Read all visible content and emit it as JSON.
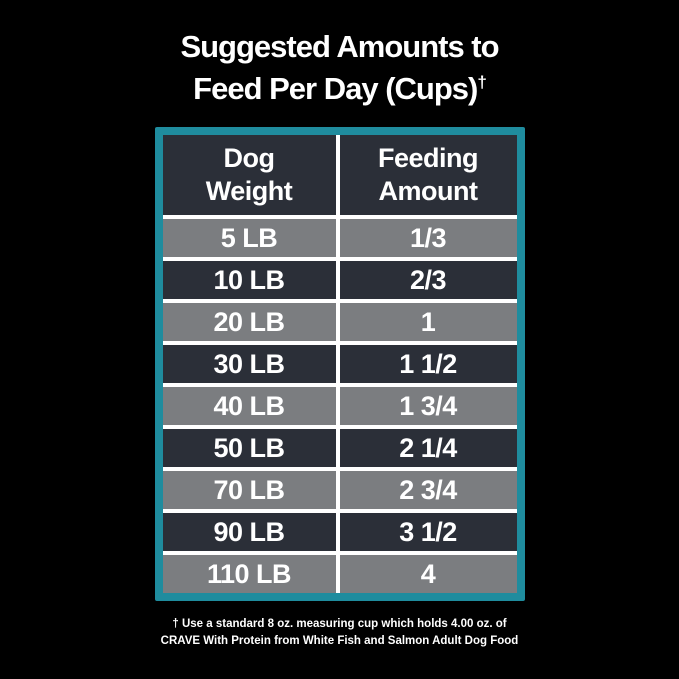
{
  "title": {
    "line1": "Suggested Amounts to",
    "line2": "Feed Per Day (Cups)",
    "dagger": "†"
  },
  "table": {
    "columns": [
      {
        "line1": "Dog",
        "line2": "Weight"
      },
      {
        "line1": "Feeding",
        "line2": "Amount"
      }
    ],
    "rows": [
      {
        "weight": "5 LB",
        "amount": "1/3"
      },
      {
        "weight": "10 LB",
        "amount": "2/3"
      },
      {
        "weight": "20 LB",
        "amount": "1"
      },
      {
        "weight": "30 LB",
        "amount": "1 1/2"
      },
      {
        "weight": "40 LB",
        "amount": "1 3/4"
      },
      {
        "weight": "50 LB",
        "amount": "2 1/4"
      },
      {
        "weight": "70 LB",
        "amount": "2 3/4"
      },
      {
        "weight": "90 LB",
        "amount": "3 1/2"
      },
      {
        "weight": "110 LB",
        "amount": "4"
      }
    ]
  },
  "footnote": {
    "line1": "† Use a standard 8 oz. measuring cup which holds 4.00 oz. of",
    "line2": "CRAVE With Protein from White Fish and Salmon Adult Dog Food"
  },
  "colors": {
    "background": "#000000",
    "border_teal": "#1f8c9e",
    "cell_dark": "#2b2f38",
    "cell_gray": "#7b7d80",
    "divider_white": "#ffffff",
    "text_white": "#ffffff"
  },
  "chart_data": {
    "type": "table",
    "title": "Suggested Amounts to Feed Per Day (Cups)†",
    "columns": [
      "Dog Weight",
      "Feeding Amount"
    ],
    "rows": [
      [
        "5 LB",
        "1/3"
      ],
      [
        "10 LB",
        "2/3"
      ],
      [
        "20 LB",
        "1"
      ],
      [
        "30 LB",
        "1 1/2"
      ],
      [
        "40 LB",
        "1 3/4"
      ],
      [
        "50 LB",
        "2 1/4"
      ],
      [
        "70 LB",
        "2 3/4"
      ],
      [
        "90 LB",
        "3 1/2"
      ],
      [
        "110 LB",
        "4"
      ]
    ],
    "weights_lb": [
      5,
      10,
      20,
      30,
      40,
      50,
      70,
      90,
      110
    ],
    "amounts_cups": [
      0.333,
      0.667,
      1,
      1.5,
      1.75,
      2.25,
      2.75,
      3.5,
      4
    ],
    "footnote": "† Use a standard 8 oz. measuring cup which holds 4.00 oz. of CRAVE With Protein from White Fish and Salmon Adult Dog Food"
  }
}
